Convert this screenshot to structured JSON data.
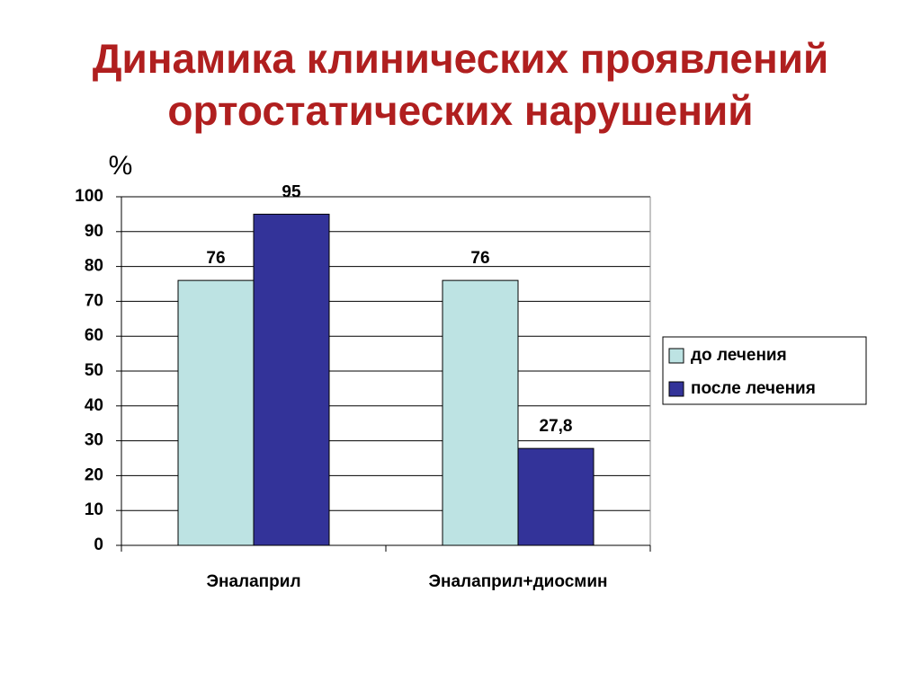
{
  "chart_data": {
    "type": "bar",
    "title": "Динамика клинических проявлений ортостатических нарушений",
    "y_label": "%",
    "categories": [
      "Эналаприл",
      "Эналаприл+диосмин"
    ],
    "series": [
      {
        "name": "до лечения",
        "color": "#bde3e3",
        "values": [
          76,
          76
        ]
      },
      {
        "name": "после лечения",
        "color": "#333399",
        "values": [
          95,
          27.8
        ],
        "value_labels": [
          "95",
          "27,8"
        ]
      }
    ],
    "ylim": [
      0,
      100
    ],
    "yticks": [
      0,
      10,
      20,
      30,
      40,
      50,
      60,
      70,
      80,
      90,
      100
    ],
    "grid": true,
    "legend": "right"
  }
}
